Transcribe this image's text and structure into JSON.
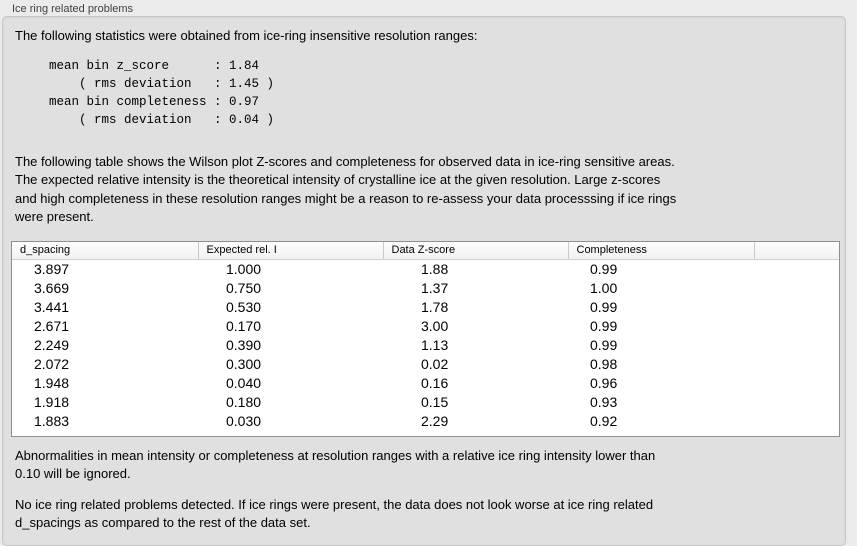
{
  "panel": {
    "caption": "Ice ring related problems"
  },
  "intro": {
    "text": "The following statistics were obtained from ice-ring insensitive resolution ranges:"
  },
  "stats": {
    "text": "mean bin z_score      : 1.84\n    ( rms deviation   : 1.45 )\nmean bin completeness : 0.97\n    ( rms deviation   : 0.04 )"
  },
  "description": {
    "text": "The following table shows the Wilson plot Z-scores and completeness for observed data in ice-ring sensitive areas.\nThe expected relative intensity is the theoretical intensity of crystalline ice at the given resolution. Large z-scores\nand high completeness in these resolution ranges might be a reason to re-assess your data processsing if ice rings\nwere present."
  },
  "table": {
    "columns": [
      "d_spacing",
      "Expected rel. I",
      "Data Z-score",
      "Completeness"
    ],
    "rows": [
      [
        "3.897",
        "1.000",
        "1.88",
        "0.99"
      ],
      [
        "3.669",
        "0.750",
        "1.37",
        "1.00"
      ],
      [
        "3.441",
        "0.530",
        "1.78",
        "0.99"
      ],
      [
        "2.671",
        "0.170",
        "3.00",
        "0.99"
      ],
      [
        "2.249",
        "0.390",
        "1.13",
        "0.99"
      ],
      [
        "2.072",
        "0.300",
        "0.02",
        "0.98"
      ],
      [
        "1.948",
        "0.040",
        "0.16",
        "0.96"
      ],
      [
        "1.918",
        "0.180",
        "0.15",
        "0.93"
      ],
      [
        "1.883",
        "0.030",
        "2.29",
        "0.92"
      ]
    ]
  },
  "notes": {
    "threshold": "Abnormalities in mean intensity or completeness at resolution ranges with a relative ice ring intensity lower than\n0.10 will be ignored.",
    "conclusion": "No ice ring related problems detected. If ice rings were present, the data does not look worse at ice ring related\nd_spacings as compared to the rest of the data set."
  },
  "colors": {
    "page_bg": "#ebebeb",
    "panel_bg": "#e0e0e0",
    "panel_border": "#c6c6c6",
    "table_border": "#8f8f8f",
    "table_bg": "#ffffff",
    "header_bg": "#f7f7f7",
    "header_divider": "#c9c9c9",
    "text": "#000000",
    "caption_text": "#3f3f3f"
  }
}
